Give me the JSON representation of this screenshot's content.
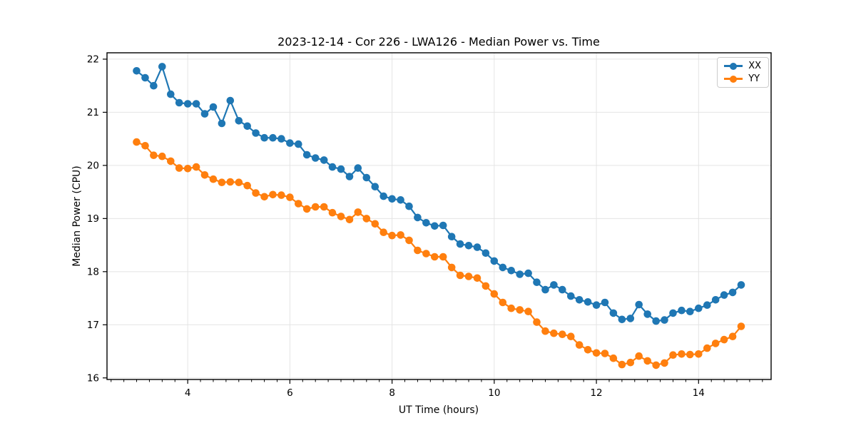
{
  "figure": {
    "title": "2023-12-14 - Cor 226 - LWA126 - Median Power vs. Time",
    "xlabel": "UT Time (hours)",
    "ylabel": "Median Power (CPU)"
  },
  "legend": {
    "position": "upper right",
    "items": [
      {
        "label": "XX",
        "color": "#1f77b4"
      },
      {
        "label": "YY",
        "color": "#ff7f0e"
      }
    ]
  },
  "chart_data": {
    "type": "line",
    "title": "2023-12-14 - Cor 226 - LWA126 - Median Power vs. Time",
    "xlabel": "UT Time (hours)",
    "ylabel": "Median Power (CPU)",
    "xlim": [
      2.42,
      15.42
    ],
    "ylim": [
      15.97,
      22.12
    ],
    "xticks": [
      4,
      6,
      8,
      10,
      12,
      14
    ],
    "yticks": [
      16,
      17,
      18,
      19,
      20,
      21,
      22
    ],
    "x_minor_tick_step": 0.25,
    "grid": true,
    "marker": "o",
    "legend_position": "upper right",
    "x": [
      3.0,
      3.167,
      3.333,
      3.5,
      3.667,
      3.833,
      4.0,
      4.167,
      4.333,
      4.5,
      4.667,
      4.833,
      5.0,
      5.167,
      5.333,
      5.5,
      5.667,
      5.833,
      6.0,
      6.167,
      6.333,
      6.5,
      6.667,
      6.833,
      7.0,
      7.167,
      7.333,
      7.5,
      7.667,
      7.833,
      8.0,
      8.167,
      8.333,
      8.5,
      8.667,
      8.833,
      9.0,
      9.167,
      9.333,
      9.5,
      9.667,
      9.833,
      10.0,
      10.167,
      10.333,
      10.5,
      10.667,
      10.833,
      11.0,
      11.167,
      11.333,
      11.5,
      11.667,
      11.833,
      12.0,
      12.167,
      12.333,
      12.5,
      12.667,
      12.833,
      13.0,
      13.167,
      13.333,
      13.5,
      13.667,
      13.833,
      14.0,
      14.167,
      14.333,
      14.5,
      14.667,
      14.833
    ],
    "series": [
      {
        "name": "XX",
        "color": "#1f77b4",
        "values": [
          21.78,
          21.65,
          21.5,
          21.86,
          21.34,
          21.18,
          21.16,
          21.16,
          20.97,
          21.1,
          20.79,
          21.22,
          20.84,
          20.74,
          20.61,
          20.52,
          20.52,
          20.5,
          20.42,
          20.4,
          20.2,
          20.14,
          20.1,
          19.97,
          19.93,
          19.79,
          19.95,
          19.77,
          19.6,
          19.42,
          19.37,
          19.35,
          19.23,
          19.02,
          18.92,
          18.86,
          18.87,
          18.66,
          18.52,
          18.49,
          18.46,
          18.35,
          18.2,
          18.08,
          18.02,
          17.95,
          17.97,
          17.8,
          17.66,
          17.75,
          17.66,
          17.54,
          17.47,
          17.43,
          17.37,
          17.42,
          17.22,
          17.1,
          17.12,
          17.38,
          17.2,
          17.07,
          17.09,
          17.22,
          17.27,
          17.25,
          17.31,
          17.37,
          17.47,
          17.56,
          17.61,
          17.75
        ]
      },
      {
        "name": "YY",
        "color": "#ff7f0e",
        "values": [
          20.44,
          20.37,
          20.19,
          20.17,
          20.08,
          19.95,
          19.94,
          19.97,
          19.82,
          19.74,
          19.68,
          19.69,
          19.68,
          19.62,
          19.48,
          19.41,
          19.45,
          19.44,
          19.4,
          19.28,
          19.18,
          19.22,
          19.22,
          19.11,
          19.04,
          18.98,
          19.12,
          19.0,
          18.9,
          18.74,
          18.68,
          18.69,
          18.59,
          18.4,
          18.34,
          18.28,
          18.28,
          18.08,
          17.93,
          17.91,
          17.88,
          17.73,
          17.58,
          17.42,
          17.31,
          17.28,
          17.25,
          17.05,
          16.88,
          16.84,
          16.82,
          16.78,
          16.62,
          16.53,
          16.47,
          16.46,
          16.37,
          16.25,
          16.29,
          16.41,
          16.32,
          16.24,
          16.28,
          16.43,
          16.45,
          16.44,
          16.45,
          16.56,
          16.65,
          16.72,
          16.78,
          16.97
        ]
      }
    ]
  }
}
